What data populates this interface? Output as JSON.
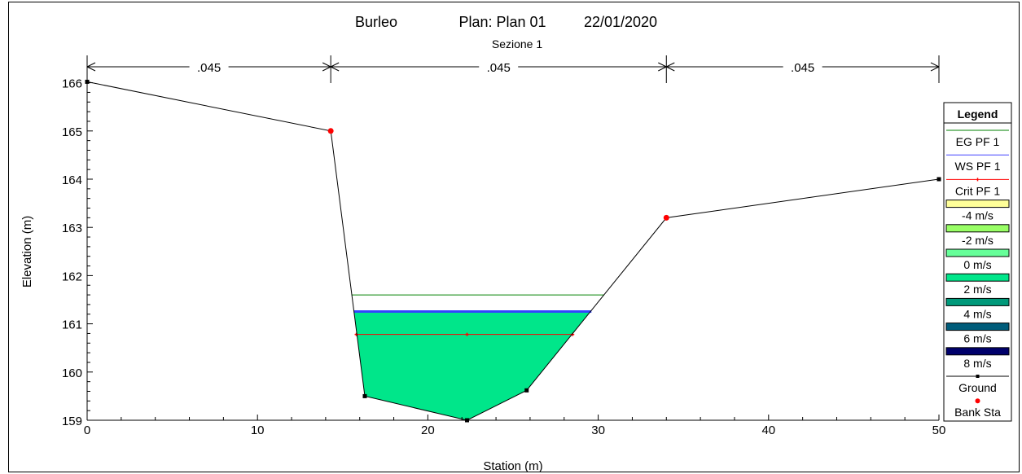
{
  "chart_data": {
    "type": "area",
    "title": "Burleo",
    "plan": "Plan: Plan 01",
    "date": "22/01/2020",
    "subtitle": "Sezione 1",
    "xlabel": "Station (m)",
    "ylabel": "Elevation (m)",
    "xlim": [
      0,
      50
    ],
    "ylim": [
      159,
      166.5
    ],
    "xticks": [
      "0",
      "10",
      "20",
      "30",
      "40",
      "50"
    ],
    "yticks": [
      "159",
      "160",
      "161",
      "162",
      "163",
      "164",
      "165",
      "166"
    ],
    "mannings_n": [
      {
        "label": ".045",
        "from": 0,
        "to": 14.3
      },
      {
        "label": ".045",
        "from": 14.3,
        "to": 34.0
      },
      {
        "label": ".045",
        "from": 34.0,
        "to": 50
      }
    ],
    "ground": {
      "name": "Ground",
      "x": [
        0,
        14.3,
        16.3,
        22.3,
        25.8,
        34.0,
        50
      ],
      "y": [
        166.02,
        165.0,
        159.5,
        159.0,
        159.62,
        163.2,
        164.0
      ]
    },
    "bank_stations": {
      "name": "Bank Sta",
      "x": [
        14.3,
        34.0
      ],
      "y": [
        165.0,
        163.2
      ]
    },
    "eg": {
      "name": "EG PF 1",
      "elevation": 161.6
    },
    "ws": {
      "name": "WS PF 1",
      "elevation": 161.28
    },
    "crit": {
      "name": "Crit PF 1",
      "elevation": 160.78,
      "marker_x": [
        15.8,
        22.3,
        28.5
      ]
    },
    "flow_fill_color": "#00e68a",
    "legend": {
      "title": "Legend",
      "entries": [
        {
          "label": "EG PF 1",
          "kind": "line",
          "color": "#008000"
        },
        {
          "label": "WS PF 1",
          "kind": "line",
          "color": "#4444ff"
        },
        {
          "label": "Crit PF 1",
          "kind": "crit",
          "color": "#ff0000"
        },
        {
          "label": "-4 m/s",
          "kind": "swatch",
          "color": "#ffff99"
        },
        {
          "label": "-2 m/s",
          "kind": "swatch",
          "color": "#99ff66"
        },
        {
          "label": "0 m/s",
          "kind": "swatch",
          "color": "#66ff99"
        },
        {
          "label": "2 m/s",
          "kind": "swatch",
          "color": "#00e68a"
        },
        {
          "label": "4 m/s",
          "kind": "swatch",
          "color": "#00997a"
        },
        {
          "label": "6 m/s",
          "kind": "swatch",
          "color": "#005c7a"
        },
        {
          "label": "8 m/s",
          "kind": "swatch",
          "color": "#00006b"
        },
        {
          "label": "Ground",
          "kind": "ground",
          "color": "#000000"
        },
        {
          "label": "Bank Sta",
          "kind": "bank",
          "color": "#ff0000"
        }
      ]
    }
  }
}
